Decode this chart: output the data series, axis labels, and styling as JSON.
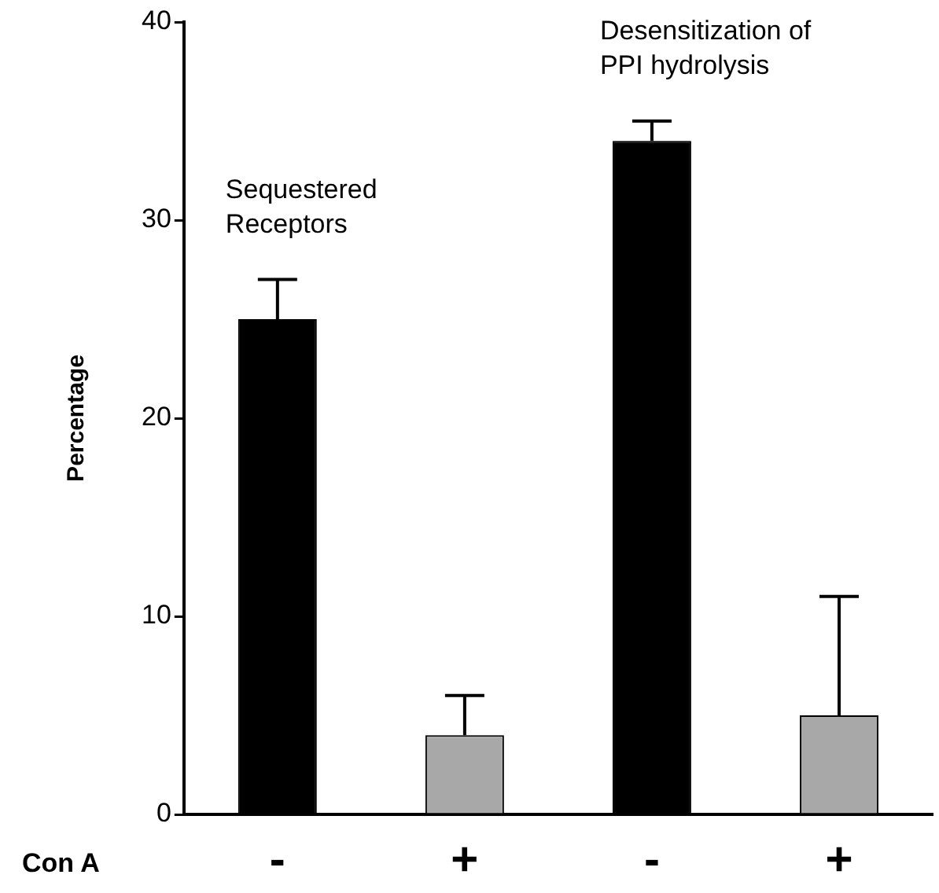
{
  "chart_data": {
    "type": "bar",
    "ylabel": "Percentage",
    "xlabel": "Con A",
    "categories": [
      "-",
      "+",
      "-",
      "+"
    ],
    "values": [
      25,
      4,
      34,
      5
    ],
    "colors": [
      "#000000",
      "#a8a8a8",
      "#000000",
      "#a8a8a8"
    ],
    "errors": [
      [
        25,
        27
      ],
      [
        4,
        6
      ],
      [
        34,
        35
      ],
      [
        5,
        11
      ]
    ],
    "ylim": [
      0,
      40
    ],
    "yticks": [
      0,
      10,
      20,
      30,
      40
    ],
    "grid": false,
    "legend": false,
    "annotations": [
      "Sequestered\nReceptors",
      "Desensitization of\nPPI hydrolysis"
    ]
  }
}
